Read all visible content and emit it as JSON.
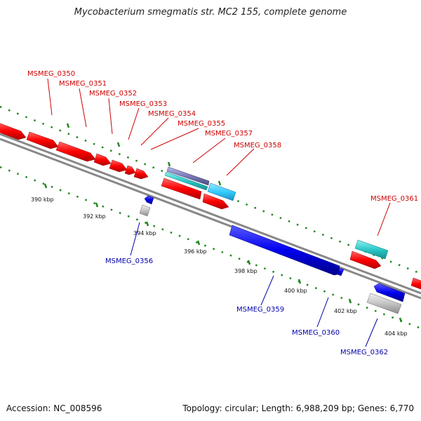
{
  "title": "Mycobacterium smegmatis str. MC2 155, complete genome",
  "footer": {
    "accession": "Accession: NC_008596",
    "summary": "Topology: circular; Length: 6,988,209 bp; Genes: 6,770"
  },
  "colors": {
    "forward_cds": "#ff0000",
    "reverse_cds": "#0000ff",
    "forward_rna": "#33cccc",
    "reverse_other": "#bbbbbb",
    "backbone": "#888888",
    "ticks": "#228822",
    "forward_label": "#cc0000",
    "reverse_label": "#0000aa"
  },
  "scale_labels": [
    "390 kbp",
    "392 kbp",
    "394 kbp",
    "396 kbp",
    "398 kbp",
    "400 kbp",
    "402 kbp",
    "404 kbp"
  ],
  "gene_labels_top": [
    "MSMEG_0350",
    "MSMEG_0351",
    "MSMEG_0352",
    "MSMEG_0353",
    "MSMEG_0354",
    "MSMEG_0355",
    "MSMEG_0357",
    "MSMEG_0358",
    "MSMEG_0361"
  ],
  "gene_labels_bottom": [
    "MSMEG_0356",
    "MSMEG_0359",
    "MSMEG_0360",
    "MSMEG_0362"
  ]
}
